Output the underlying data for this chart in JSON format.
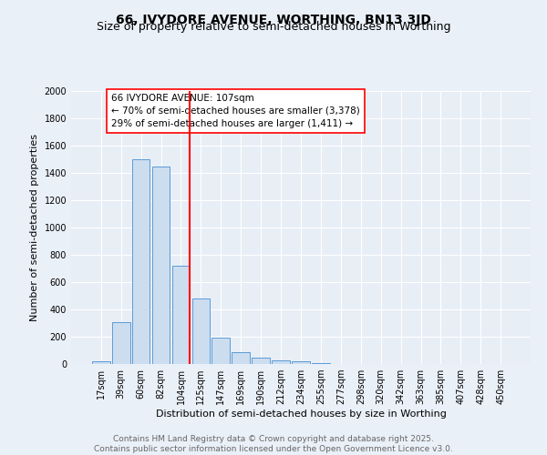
{
  "title": "66, IVYDORE AVENUE, WORTHING, BN13 3JD",
  "subtitle": "Size of property relative to semi-detached houses in Worthing",
  "xlabel": "Distribution of semi-detached houses by size in Worthing",
  "ylabel": "Number of semi-detached properties",
  "bar_labels": [
    "17sqm",
    "39sqm",
    "60sqm",
    "82sqm",
    "104sqm",
    "125sqm",
    "147sqm",
    "169sqm",
    "190sqm",
    "212sqm",
    "234sqm",
    "255sqm",
    "277sqm",
    "298sqm",
    "320sqm",
    "342sqm",
    "363sqm",
    "385sqm",
    "407sqm",
    "428sqm",
    "450sqm"
  ],
  "bar_values": [
    20,
    310,
    1500,
    1450,
    720,
    480,
    195,
    90,
    45,
    25,
    20,
    10,
    0,
    0,
    0,
    0,
    0,
    0,
    0,
    0,
    0
  ],
  "bar_color": "#ccddf0",
  "bar_edge_color": "#5b9bd5",
  "vline_x_index": 4,
  "vline_color": "red",
  "annotation_text": "66 IVYDORE AVENUE: 107sqm\n← 70% of semi-detached houses are smaller (3,378)\n29% of semi-detached houses are larger (1,411) →",
  "annotation_box_color": "white",
  "annotation_box_edge_color": "red",
  "ylim": [
    0,
    2000
  ],
  "yticks": [
    0,
    200,
    400,
    600,
    800,
    1000,
    1200,
    1400,
    1600,
    1800,
    2000
  ],
  "footer_text": "Contains HM Land Registry data © Crown copyright and database right 2025.\nContains public sector information licensed under the Open Government Licence v3.0.",
  "background_color": "#eaf0f8",
  "plot_bg_color": "#e8eef6",
  "grid_color": "white",
  "title_fontsize": 10,
  "subtitle_fontsize": 9,
  "axis_label_fontsize": 8,
  "tick_fontsize": 7,
  "annotation_fontsize": 7.5,
  "footer_fontsize": 6.5
}
